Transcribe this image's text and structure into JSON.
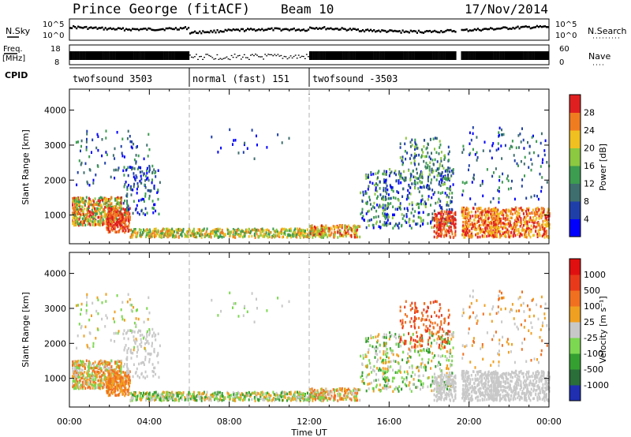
{
  "header": {
    "title": "Prince George (fitACF)",
    "beam": "Beam 10",
    "date": "17/Nov/2014"
  },
  "summary": {
    "nsky_label": "N.Sky",
    "nsearch_label": "N.Search",
    "freq_label_1": "Freq.",
    "freq_label_2": "[MHz]",
    "nave_label": "Nave",
    "cpid_label": "CPID",
    "nsky_ticks": [
      "10^5",
      "10^0"
    ],
    "nsearch_ticks": [
      "10^5",
      "10^0"
    ],
    "freq_ticks": [
      "18",
      "8"
    ],
    "nave_ticks": [
      "60",
      "0"
    ]
  },
  "cpid_segments": [
    {
      "label": "twofsound 3503",
      "start_h": 0,
      "end_h": 6
    },
    {
      "label": "normal (fast) 151",
      "start_h": 6,
      "end_h": 12
    },
    {
      "label": "twofsound -3503",
      "start_h": 12,
      "end_h": 24
    }
  ],
  "chart_data": [
    {
      "type": "heatmap",
      "name": "power",
      "ylabel": "Slant Range [km]",
      "xlabel": "Time UT",
      "xlim_hours": [
        0,
        24
      ],
      "ylim": [
        180,
        4600
      ],
      "y_ticks": [
        "1000",
        "2000",
        "3000",
        "4000"
      ],
      "x_ticks": [
        "00:00",
        "04:00",
        "08:00",
        "12:00",
        "16:00",
        "20:00",
        "00:00"
      ],
      "colorbar": {
        "label": "Power [dB]",
        "ticks": [
          "4",
          "8",
          "12",
          "16",
          "20",
          "24",
          "28"
        ],
        "colors": [
          "#0000ff",
          "#1f3fa8",
          "#3e6e6e",
          "#3c9c50",
          "#8cc840",
          "#f0c020",
          "#f07c20",
          "#e02020"
        ]
      }
    },
    {
      "type": "heatmap",
      "name": "velocity",
      "ylabel": "Slant Range [km]",
      "xlabel": "Time UT",
      "xlim_hours": [
        0,
        24
      ],
      "ylim": [
        180,
        4600
      ],
      "y_ticks": [
        "1000",
        "2000",
        "3000",
        "4000"
      ],
      "x_ticks": [
        "00:00",
        "04:00",
        "08:00",
        "12:00",
        "16:00",
        "20:00",
        "00:00"
      ],
      "colorbar": {
        "label": "Velocity [m s⁻¹]",
        "ticks": [
          "1000",
          "500",
          "100",
          "25",
          "-25",
          "-100",
          "-500",
          "-1000"
        ],
        "colors": [
          "#1f2fb0",
          "#2a6e3a",
          "#34a030",
          "#7cd850",
          "#c8c8c8",
          "#f0a020",
          "#f07020",
          "#e83a1a",
          "#e01010"
        ]
      }
    }
  ]
}
